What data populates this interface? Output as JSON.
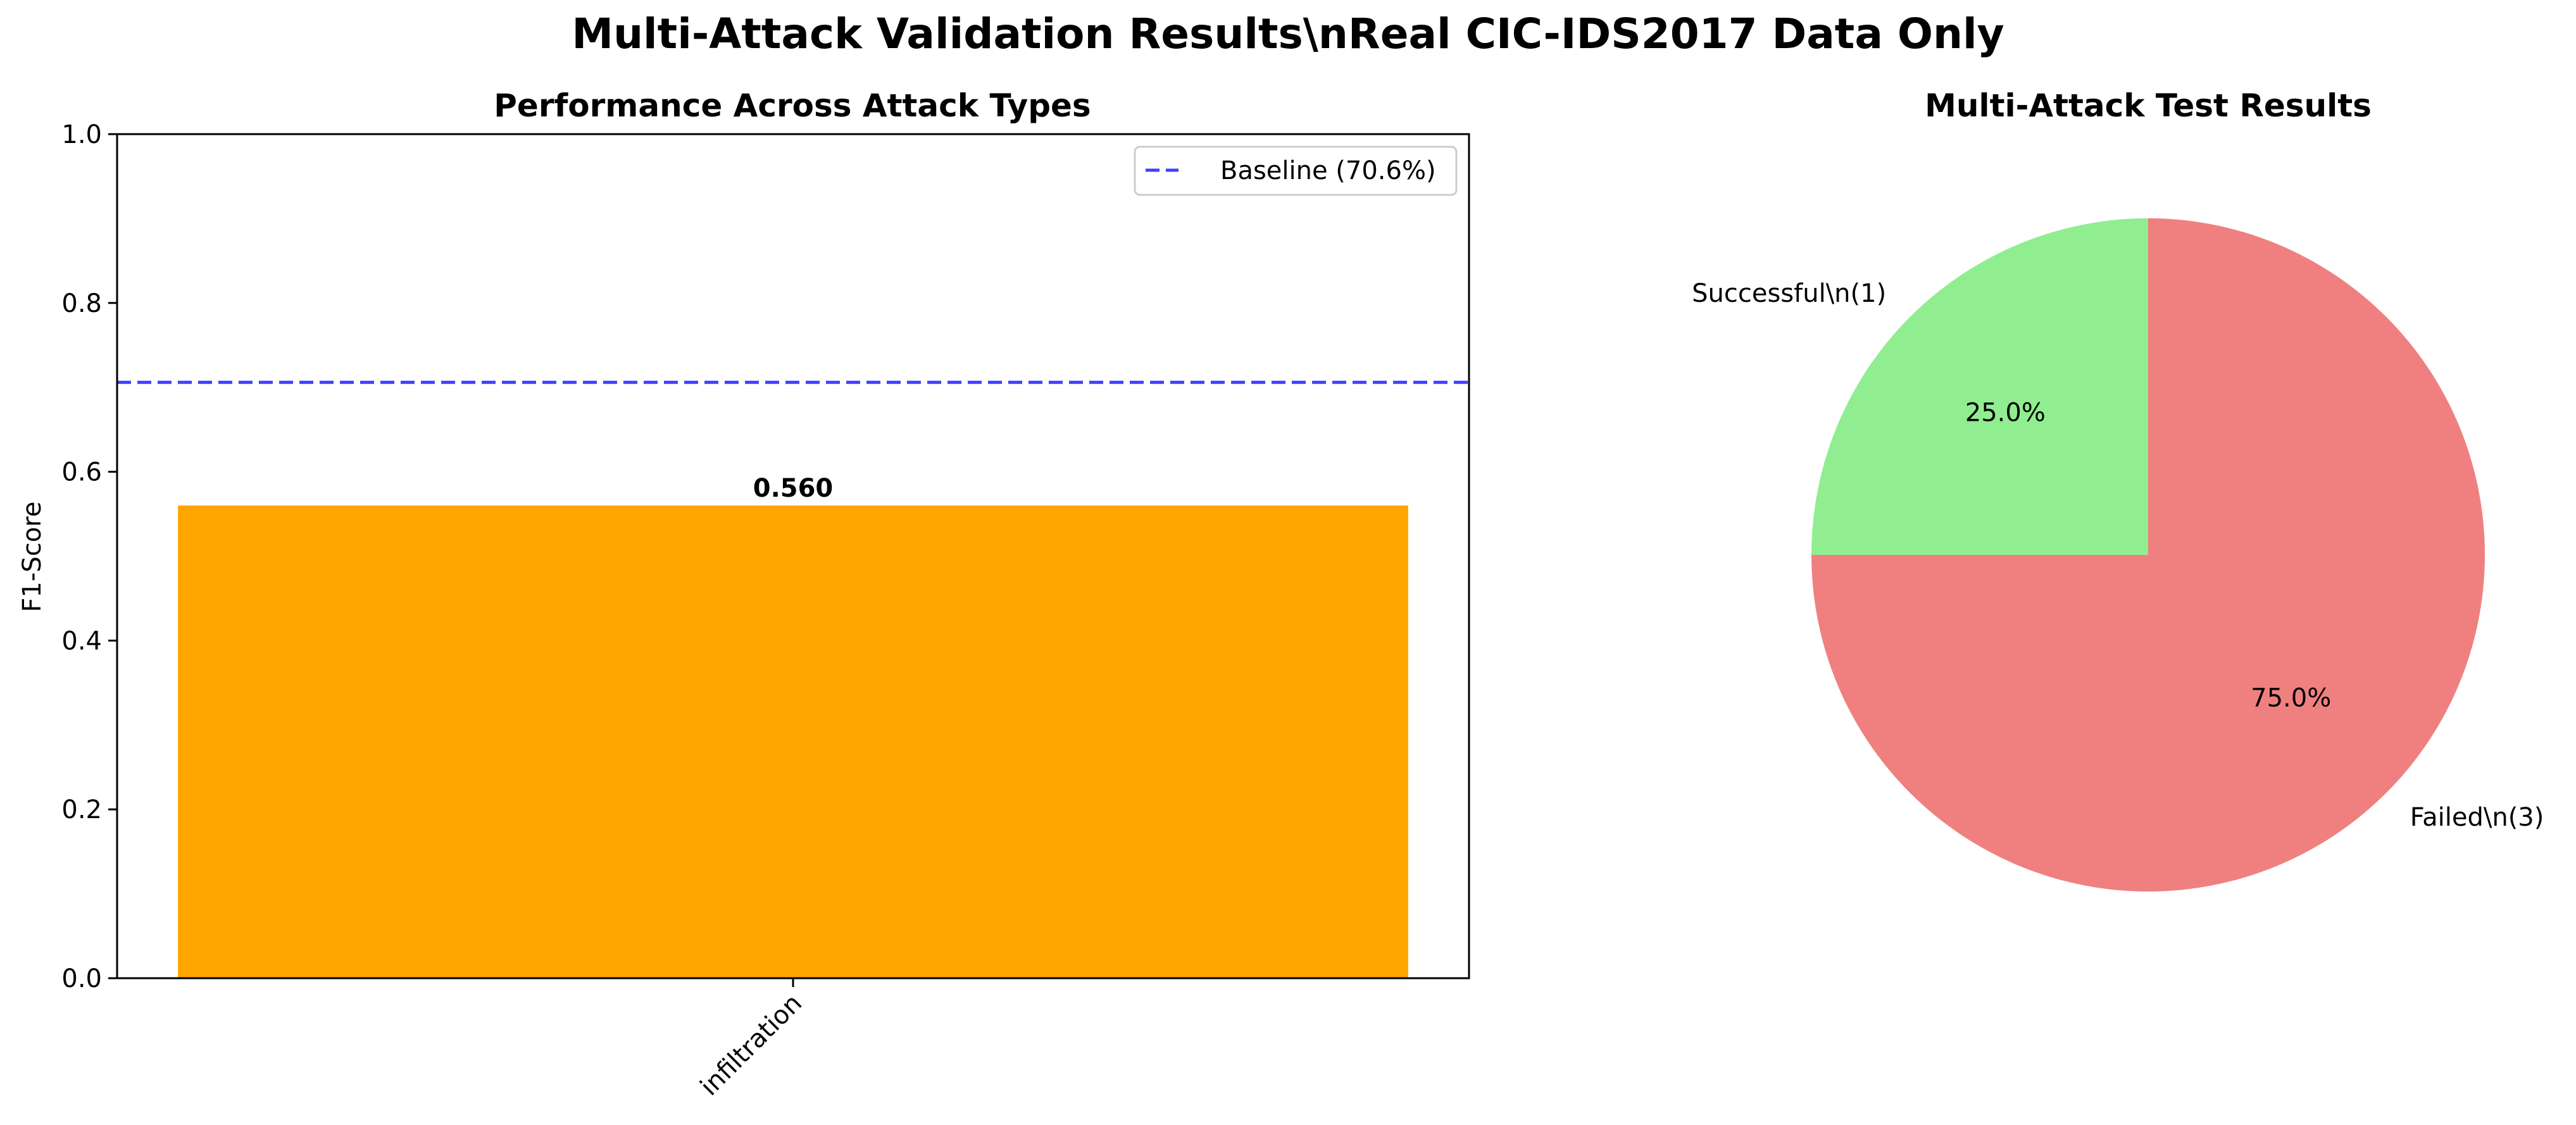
{
  "figure": {
    "title": "Multi-Attack Validation Results\\nReal CIC-IDS2017 Data Only"
  },
  "chart_data": [
    {
      "type": "bar",
      "title": "Performance Across Attack Types",
      "xlabel": "",
      "ylabel": "F1-Score",
      "ylim": [
        0,
        1.0
      ],
      "yticks": [
        "0.0",
        "0.2",
        "0.4",
        "0.6",
        "0.8",
        "1.0"
      ],
      "categories": [
        "infiltration"
      ],
      "values": [
        0.56
      ],
      "value_labels": [
        "0.560"
      ],
      "bar_color": "#FFA500",
      "baseline": {
        "value": 0.706,
        "label": "Baseline (70.6%)",
        "color": "#0000FF",
        "style": "dashed"
      },
      "legend": {
        "position": "top-right",
        "entries": [
          "Baseline (70.6%)"
        ]
      },
      "grid": false
    },
    {
      "type": "pie",
      "title": "Multi-Attack Test Results",
      "slices": [
        {
          "label": "Successful\\n(1)",
          "value": 1,
          "percent_label": "25.0%",
          "color": "#90EE90"
        },
        {
          "label": "Failed\\n(3)",
          "value": 3,
          "percent_label": "75.0%",
          "color": "#F08080"
        }
      ],
      "start_angle_deg": 90
    }
  ]
}
